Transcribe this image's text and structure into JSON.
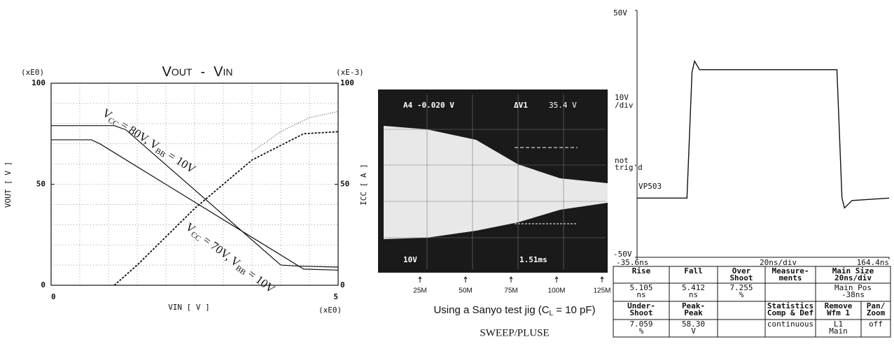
{
  "chart_data": [
    {
      "type": "line",
      "title_parts": [
        "V",
        "OUT",
        "-",
        "V",
        "IN"
      ],
      "x_label": "VIN [ V ]",
      "y_label": "VOUT [ V ]",
      "y2_label": "ICC [ A ]",
      "y_scale_note": "(xE0)",
      "y2_scale_note": "(xE-3)",
      "x_scale_note": "(xE0)",
      "xlim": [
        0,
        5
      ],
      "xticks": [
        0,
        5
      ],
      "ylim": [
        0,
        100
      ],
      "yticks": [
        0,
        50,
        100
      ],
      "y2lim": [
        0,
        100
      ],
      "y2ticks": [
        0,
        50,
        100
      ],
      "grid": true,
      "series": [
        {
          "color": "#111",
          "dash": "solid",
          "x": [
            0,
            1.1,
            1.3,
            4.0,
            4.3,
            5
          ],
          "values": [
            79,
            79,
            77,
            10,
            9.5,
            9
          ]
        },
        {
          "color": "#111",
          "dash": "solid",
          "x": [
            0,
            0.7,
            0.85,
            4.4,
            5
          ],
          "values": [
            72,
            72,
            70,
            8,
            7.5
          ]
        },
        {
          "color": "#111",
          "dash": "dashed",
          "axis": "y2",
          "x": [
            1.1,
            1.5,
            2.5,
            3.5,
            4.4,
            5
          ],
          "values": [
            0,
            10,
            38,
            62,
            75,
            76
          ]
        },
        {
          "color": "#555",
          "dash": "dotted",
          "axis": "y2",
          "x": [
            3.5,
            4.0,
            4.5,
            5
          ],
          "values": [
            66,
            76,
            83,
            86
          ]
        }
      ],
      "annotations": [
        {
          "parts": [
            "V",
            "CC",
            " = 80V, V",
            "BB",
            " = 10V"
          ]
        },
        {
          "parts": [
            "V",
            "CC",
            " = 70V, V",
            "BB",
            " = 10V"
          ]
        }
      ]
    },
    {
      "type": "scope-image",
      "xlim": [
        0,
        125000000
      ],
      "xticks": [
        {
          "value": 25000000,
          "label": "25M"
        },
        {
          "value": 50000000,
          "label": "50M"
        },
        {
          "value": 75000000,
          "label": "75M"
        },
        {
          "value": 100000000,
          "label": "100M"
        },
        {
          "value": 125000000,
          "label": "125M"
        }
      ],
      "annotations": [
        "A4 -0.020 V",
        "ΔV1",
        "35.4 V",
        "10V",
        "1.51ms"
      ],
      "caption_parts": [
        "Using a Sanyo test jig (C",
        "L",
        " = 10 pF)"
      ],
      "subcaption": "SWEEP/PLUSE"
    },
    {
      "type": "line",
      "xlim": [
        -35.6,
        164.4
      ],
      "xticks": [
        {
          "value": -35.6,
          "label": "-35.6ns"
        },
        {
          "value": 164.4,
          "label": "164.4ns"
        }
      ],
      "ylim": [
        -50,
        50
      ],
      "yticks": [
        {
          "value": 50,
          "label": "50V"
        },
        {
          "value": -50,
          "label": "-50V"
        }
      ],
      "series": [
        {
          "color": "#111",
          "x": [
            -35.6,
            4,
            8,
            10,
            14,
            123,
            127,
            129,
            135,
            164.4
          ],
          "values": [
            -26,
            -26,
            25,
            29.5,
            26,
            26,
            -26,
            -30,
            -27,
            -26
          ]
        }
      ],
      "annotations": [
        "20ns/div",
        "10V",
        "/div",
        "VP503",
        "not",
        "trig'd"
      ],
      "table": {
        "rows": [
          [
            [
              "Rise"
            ],
            [
              "Fall"
            ],
            [
              "Over",
              "Shoot"
            ],
            [
              "Measure-",
              "ments"
            ],
            [
              "Main Size",
              "20ns/div"
            ]
          ],
          [
            [
              "5.105",
              "ns"
            ],
            [
              "5.412",
              "ns"
            ],
            [
              "7.255",
              "%"
            ],
            [],
            [
              "Main Pos",
              "-38ns"
            ]
          ],
          [
            [
              "Under-",
              "Shoot"
            ],
            [
              "Peak-",
              "Peak"
            ],
            [],
            [
              "Statistics",
              "Comp & Def"
            ],
            [
              "Remove",
              "Wfm 1"
            ],
            [
              "Pan/",
              "Zoom"
            ]
          ],
          [
            [
              "7.059",
              "%"
            ],
            [
              "58.30",
              "V"
            ],
            [],
            [
              "continuous"
            ],
            [
              "L1",
              "Main"
            ],
            [
              "off"
            ]
          ]
        ]
      }
    }
  ]
}
